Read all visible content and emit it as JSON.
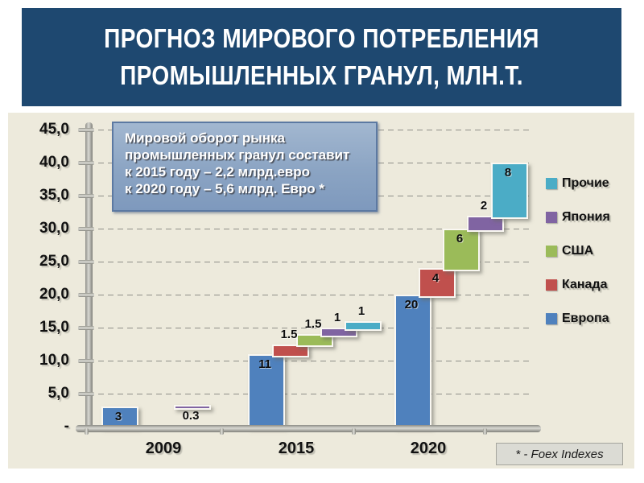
{
  "slide": {
    "title": "ПРОГНОЗ МИРОВОГО ПОТРЕБЛЕНИЯ ПРОМЫШЛЕННЫХ ГРАНУЛ, МЛН.Т.",
    "title_bg_color": "#1E4870",
    "title_text_color": "#ffffff",
    "chart_bg_color": "#EDEADC"
  },
  "annotation": {
    "lines": [
      "Мировой оборот рынка",
      "промышленных гранул составит",
      "к 2015 году – 2,2 млрд.евро",
      "к 2020 году – 5,6 млрд. Евро *"
    ]
  },
  "footnote": "* - Foex Indexes",
  "chart_data": {
    "type": "bar",
    "subtype": "waterfall-stacked-steps",
    "title": "",
    "xlabel": "",
    "ylabel": "",
    "categories": [
      "2009",
      "2015",
      "2020"
    ],
    "series": [
      {
        "name": "Европа",
        "color": "#4F81BD",
        "values": [
          3,
          11,
          20
        ],
        "labels": [
          "3",
          "11",
          "20"
        ]
      },
      {
        "name": "Канада",
        "color": "#C0504D",
        "values": [
          0,
          1.5,
          4
        ],
        "labels": [
          "",
          "1.5",
          "4"
        ]
      },
      {
        "name": "США",
        "color": "#9BBB59",
        "values": [
          0,
          1.5,
          6
        ],
        "labels": [
          "",
          "1.5",
          "6"
        ]
      },
      {
        "name": "Япония",
        "color": "#8064A2",
        "values": [
          0.3,
          1,
          2
        ],
        "labels": [
          "0.3",
          "1",
          "2"
        ]
      },
      {
        "name": "Прочие",
        "color": "#4BACC6",
        "values": [
          0,
          1,
          8
        ],
        "labels": [
          "",
          "1",
          "8"
        ]
      }
    ],
    "category_totals": [
      3.3,
      16,
      40
    ],
    "ylim": [
      0,
      45
    ],
    "ytick_step": 5,
    "ytick_labels": [
      "-",
      "5,0",
      "10,0",
      "15,0",
      "20,0",
      "25,0",
      "30,0",
      "35,0",
      "40,0",
      "45,0"
    ],
    "grid": "horizontal-dashed",
    "legend_position": "right",
    "legend_order": [
      "Прочие",
      "Япония",
      "США",
      "Канада",
      "Европа"
    ]
  }
}
